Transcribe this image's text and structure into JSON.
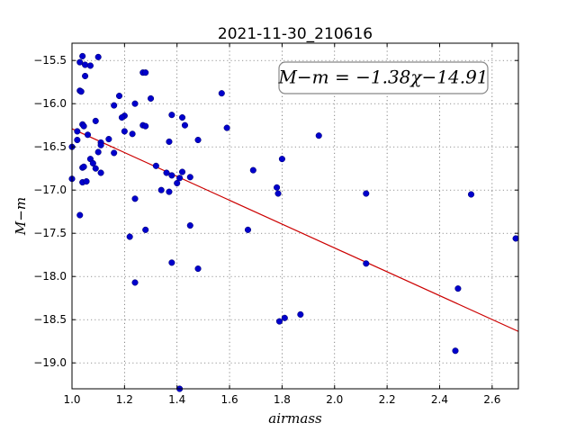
{
  "chart_data": {
    "type": "scatter",
    "title": "2021-11-30_210616",
    "xlabel": "airmass",
    "ylabel": "M−m",
    "xlim": [
      1.0,
      2.7
    ],
    "ylim": [
      -19.3,
      -15.3
    ],
    "y_inverted": true,
    "grid": true,
    "x_ticks": [
      1.0,
      1.2,
      1.4,
      1.6,
      1.8,
      2.0,
      2.2,
      2.4,
      2.6
    ],
    "y_ticks": [
      -15.5,
      -16.0,
      -16.5,
      -17.0,
      -17.5,
      -18.0,
      -18.5,
      -19.0
    ],
    "x_tick_labels": [
      "1.0",
      "1.2",
      "1.4",
      "1.6",
      "1.8",
      "2.0",
      "2.2",
      "2.4",
      "2.6"
    ],
    "y_tick_labels": [
      "−15.5",
      "−16.0",
      "−16.5",
      "−17.0",
      "−17.5",
      "−18.0",
      "−18.5",
      "−19.0"
    ],
    "annotation": "M−m = −1.38χ−14.91",
    "fit": {
      "slope": -1.38,
      "intercept": -14.91,
      "color": "#cc0000"
    },
    "point_color": "#0000cc",
    "points": [
      {
        "x": 1.03,
        "y": -15.52
      },
      {
        "x": 1.04,
        "y": -15.45
      },
      {
        "x": 1.05,
        "y": -15.55
      },
      {
        "x": 1.07,
        "y": -15.56
      },
      {
        "x": 1.1,
        "y": -15.46
      },
      {
        "x": 1.05,
        "y": -15.68
      },
      {
        "x": 1.03,
        "y": -15.85
      },
      {
        "x": 1.035,
        "y": -15.86
      },
      {
        "x": 1.18,
        "y": -15.91
      },
      {
        "x": 1.27,
        "y": -15.64
      },
      {
        "x": 1.28,
        "y": -15.64
      },
      {
        "x": 1.57,
        "y": -15.88
      },
      {
        "x": 1.24,
        "y": -16.0
      },
      {
        "x": 1.16,
        "y": -16.02
      },
      {
        "x": 1.3,
        "y": -15.94
      },
      {
        "x": 1.09,
        "y": -16.2
      },
      {
        "x": 1.04,
        "y": -16.24
      },
      {
        "x": 1.045,
        "y": -16.26
      },
      {
        "x": 1.2,
        "y": -16.14
      },
      {
        "x": 1.19,
        "y": -16.16
      },
      {
        "x": 1.38,
        "y": -16.13
      },
      {
        "x": 1.42,
        "y": -16.16
      },
      {
        "x": 1.43,
        "y": -16.25
      },
      {
        "x": 1.27,
        "y": -16.25
      },
      {
        "x": 1.28,
        "y": -16.26
      },
      {
        "x": 1.59,
        "y": -16.28
      },
      {
        "x": 1.02,
        "y": -16.32
      },
      {
        "x": 1.06,
        "y": -16.36
      },
      {
        "x": 1.2,
        "y": -16.32
      },
      {
        "x": 1.23,
        "y": -16.35
      },
      {
        "x": 1.14,
        "y": -16.41
      },
      {
        "x": 1.11,
        "y": -16.45
      },
      {
        "x": 1.11,
        "y": -16.48
      },
      {
        "x": 1.37,
        "y": -16.44
      },
      {
        "x": 1.48,
        "y": -16.42
      },
      {
        "x": 1.94,
        "y": -16.37
      },
      {
        "x": 1.0,
        "y": -16.5
      },
      {
        "x": 1.02,
        "y": -16.42
      },
      {
        "x": 1.1,
        "y": -16.56
      },
      {
        "x": 1.16,
        "y": -16.57
      },
      {
        "x": 1.07,
        "y": -16.64
      },
      {
        "x": 1.08,
        "y": -16.69
      },
      {
        "x": 1.04,
        "y": -16.74
      },
      {
        "x": 1.045,
        "y": -16.73
      },
      {
        "x": 1.09,
        "y": -16.75
      },
      {
        "x": 1.11,
        "y": -16.8
      },
      {
        "x": 1.32,
        "y": -16.72
      },
      {
        "x": 1.36,
        "y": -16.8
      },
      {
        "x": 1.38,
        "y": -16.83
      },
      {
        "x": 1.42,
        "y": -16.79
      },
      {
        "x": 1.41,
        "y": -16.86
      },
      {
        "x": 1.45,
        "y": -16.85
      },
      {
        "x": 1.69,
        "y": -16.77
      },
      {
        "x": 1.8,
        "y": -16.64
      },
      {
        "x": 1.0,
        "y": -16.87
      },
      {
        "x": 1.04,
        "y": -16.91
      },
      {
        "x": 1.055,
        "y": -16.9
      },
      {
        "x": 1.4,
        "y": -16.92
      },
      {
        "x": 1.34,
        "y": -17.0
      },
      {
        "x": 1.37,
        "y": -17.02
      },
      {
        "x": 1.78,
        "y": -16.97
      },
      {
        "x": 1.785,
        "y": -17.04
      },
      {
        "x": 2.12,
        "y": -17.04
      },
      {
        "x": 2.52,
        "y": -17.05
      },
      {
        "x": 1.03,
        "y": -17.29
      },
      {
        "x": 1.24,
        "y": -17.1
      },
      {
        "x": 1.22,
        "y": -17.54
      },
      {
        "x": 1.28,
        "y": -17.46
      },
      {
        "x": 1.45,
        "y": -17.41
      },
      {
        "x": 1.67,
        "y": -17.46
      },
      {
        "x": 2.69,
        "y": -17.56
      },
      {
        "x": 1.38,
        "y": -17.84
      },
      {
        "x": 1.48,
        "y": -17.91
      },
      {
        "x": 2.12,
        "y": -17.85
      },
      {
        "x": 1.24,
        "y": -18.07
      },
      {
        "x": 2.47,
        "y": -18.14
      },
      {
        "x": 1.79,
        "y": -18.52
      },
      {
        "x": 1.81,
        "y": -18.48
      },
      {
        "x": 1.87,
        "y": -18.44
      },
      {
        "x": 2.46,
        "y": -18.86
      },
      {
        "x": 1.41,
        "y": -19.3
      }
    ]
  }
}
